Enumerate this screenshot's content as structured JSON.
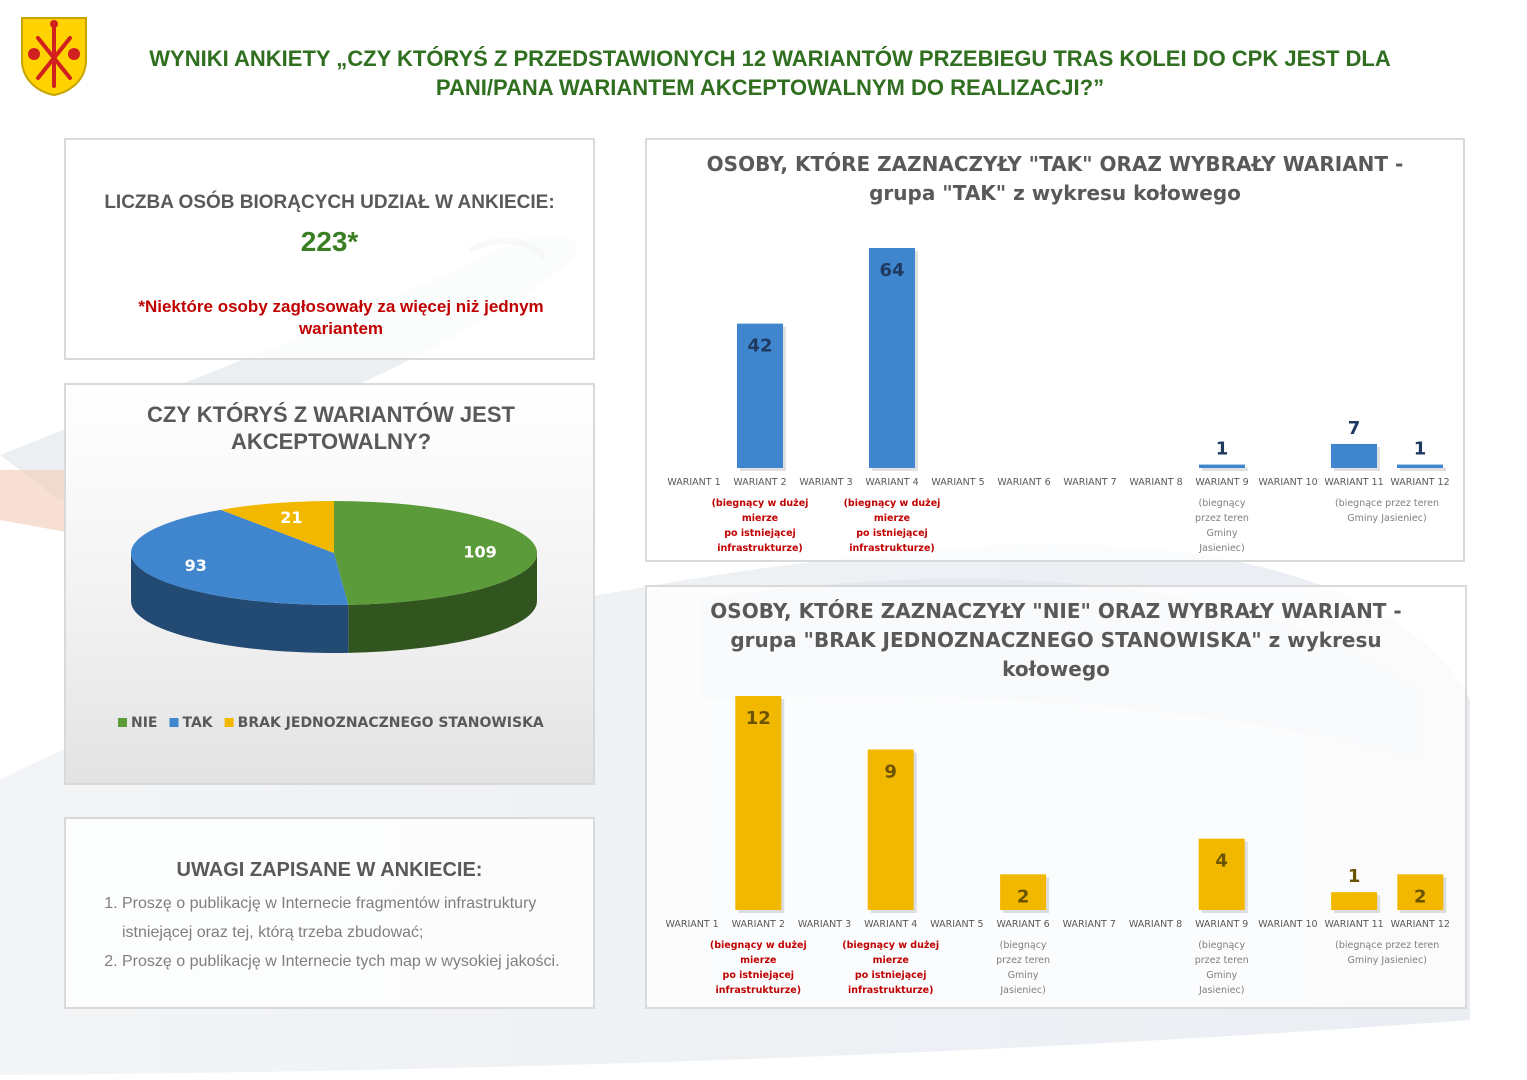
{
  "header": {
    "title_line1": "WYNIKI ANKIETY „CZY KTÓRYŚ Z PRZEDSTAWIONYCH 12 WARIANTÓW PRZEBIEGU TRAS KOLEI DO CPK JEST DLA",
    "title_line2": "PANI/PANA WARIANTEM AKCEPTOWALNYM DO REALIZACJI?”"
  },
  "participants": {
    "label": "LICZBA OSÓB BIORĄCYCH UDZIAŁ W ANKIECIE:",
    "value": "223*",
    "note": "*Niektóre osoby zagłosowały za więcej niż jednym wariantem"
  },
  "notes": {
    "title": "UWAGI ZAPISANE W ANKIECIE:",
    "items": [
      "Proszę o publikację w Internecie fragmentów infrastruktury istniejącej oraz tej, którą trzeba zbudować;",
      "Proszę o publikację w Internecie tych map w wysokiej jakości."
    ]
  },
  "colors": {
    "nie": "#5b9b3a",
    "tak": "#3f86cf",
    "brak": "#f2b800",
    "title_green": "#2f6f1f",
    "note_red": "#c00000"
  },
  "chart_data": [
    {
      "type": "pie",
      "title_line1": "CZY KTÓRYŚ Z WARIANTÓW JEST",
      "title_line2": "AKCEPTOWALNY?",
      "slices": [
        {
          "name": "NIE",
          "value": 109
        },
        {
          "name": "TAK",
          "value": 93
        },
        {
          "name": "BRAK JEDNOZNACZNEGO STANOWISKA",
          "value": 21
        }
      ],
      "legend_position": "bottom"
    },
    {
      "type": "bar",
      "title_line1": "OSOBY, KTÓRE ZAZNACZYŁY \"TAK\" ORAZ WYBRAŁY WARIANT -",
      "title_line2": "grupa \"TAK\" z wykresu kołowego",
      "title_line3": "",
      "categories": [
        "WARIANT 1",
        "WARIANT 2",
        "WARIANT 3",
        "WARIANT 4",
        "WARIANT 5",
        "WARIANT 6",
        "WARIANT 7",
        "WARIANT 8",
        "WARIANT 9",
        "WARIANT 10",
        "WARIANT 11",
        "WARIANT 12"
      ],
      "values": [
        null,
        42,
        null,
        64,
        null,
        null,
        null,
        null,
        1,
        null,
        7,
        1
      ],
      "ylim": [
        0,
        64
      ],
      "grid": false,
      "annotations": [
        {
          "category": "WARIANT 2",
          "color": "red",
          "lines": [
            "(biegnący w dużej",
            "mierze",
            "po istniejącej",
            "infrastrukturze)"
          ]
        },
        {
          "category": "WARIANT 4",
          "color": "red",
          "lines": [
            "(biegnący w dużej",
            "mierze",
            "po istniejącej",
            "infrastrukturze)"
          ]
        },
        {
          "category": "WARIANT 9",
          "color": "gray",
          "lines": [
            "(biegnący",
            "przez teren",
            "Gminy",
            "Jasieniec)"
          ]
        },
        {
          "category": "WARIANT 11",
          "span_to": "WARIANT 12",
          "color": "gray",
          "lines": [
            "(biegnące przez teren",
            "Gminy Jasieniec)"
          ]
        }
      ]
    },
    {
      "type": "bar",
      "title_line1": "OSOBY, KTÓRE ZAZNACZYŁY \"NIE\" ORAZ WYBRAŁY WARIANT -",
      "title_line2": "grupa \"BRAK JEDNOZNACZNEGO STANOWISKA\" z wykresu",
      "title_line3": "kołowego",
      "categories": [
        "WARIANT 1",
        "WARIANT 2",
        "WARIANT 3",
        "WARIANT 4",
        "WARIANT 5",
        "WARIANT 6",
        "WARIANT 7",
        "WARIANT 8",
        "WARIANT 9",
        "WARIANT 10",
        "WARIANT 11",
        "WARIANT 12"
      ],
      "values": [
        null,
        12,
        null,
        9,
        null,
        2,
        null,
        null,
        4,
        null,
        1,
        2
      ],
      "ylim": [
        0,
        12
      ],
      "grid": false,
      "annotations": [
        {
          "category": "WARIANT 2",
          "color": "red",
          "lines": [
            "(biegnący w dużej",
            "mierze",
            "po istniejącej",
            "infrastrukturze)"
          ]
        },
        {
          "category": "WARIANT 4",
          "color": "red",
          "lines": [
            "(biegnący w dużej",
            "mierze",
            "po istniejącej",
            "infrastrukturze)"
          ]
        },
        {
          "category": "WARIANT 6",
          "color": "gray",
          "lines": [
            "(biegnący",
            "przez teren",
            "Gminy",
            "Jasieniec)"
          ]
        },
        {
          "category": "WARIANT 9",
          "color": "gray",
          "lines": [
            "(biegnący",
            "przez teren",
            "Gminy",
            "Jasieniec)"
          ]
        },
        {
          "category": "WARIANT 11",
          "span_to": "WARIANT 12",
          "color": "gray",
          "lines": [
            "(biegnące przez teren",
            "Gminy Jasieniec)"
          ]
        }
      ]
    }
  ]
}
